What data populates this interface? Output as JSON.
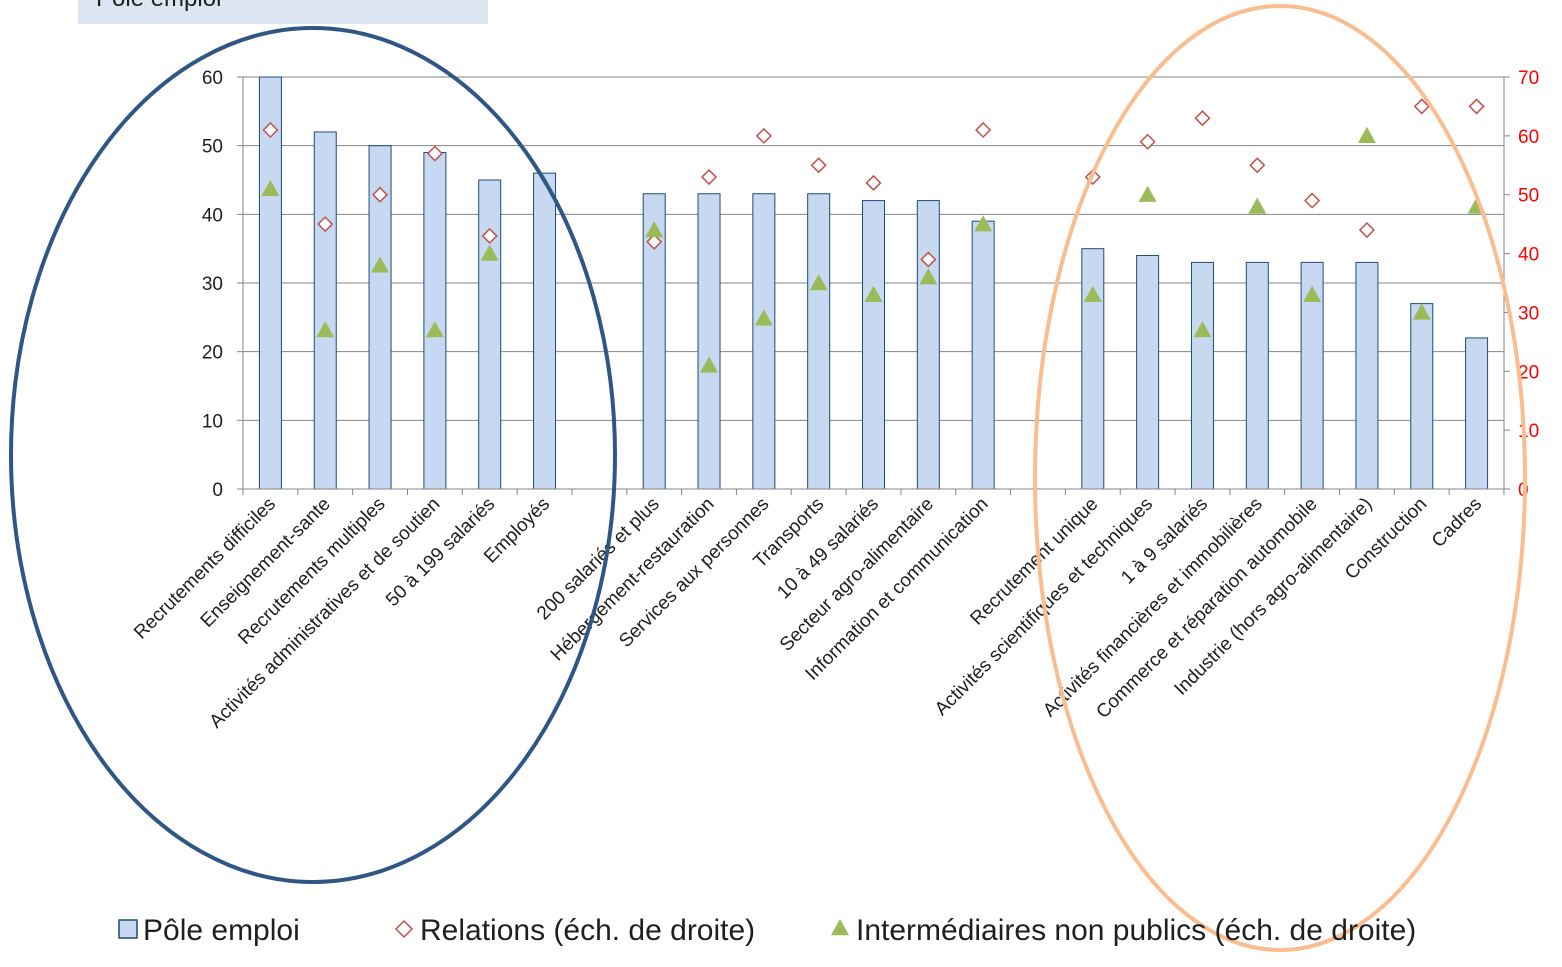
{
  "header": {
    "label": "Pôle emploi"
  },
  "chart_data": {
    "type": "bar",
    "categories": [
      "Recrutements difficiles",
      "Enseignement-sante",
      "Recrutements multiples",
      "Activités  administratives  et de soutien",
      "50 à 199 salariés",
      "Employés",
      "",
      "200 salariés et plus",
      "Hébergement-restauration",
      "Services aux personnes",
      "Transports",
      "10 à 49 salariés",
      "Secteur agro-alimentaire",
      "Information et communication",
      "",
      "Recrutement unique",
      "Activités scientifiques et  techniques",
      "1 à 9 salariés",
      "Activités financières et immobilières",
      "Commerce et réparation automobile",
      "Industrie (hors agro-alimentaire)",
      "Construction",
      "Cadres"
    ],
    "series": [
      {
        "name": "Pôle emploi",
        "axis": "left",
        "marker": "bar",
        "color": "#c6d9f1",
        "stroke": "#1f497d",
        "values": [
          60,
          52,
          50,
          49,
          45,
          46,
          null,
          43,
          43,
          43,
          43,
          42,
          42,
          39,
          null,
          35,
          34,
          33,
          33,
          33,
          33,
          27,
          22
        ]
      },
      {
        "name": "Relations (éch. de droite)",
        "axis": "right",
        "marker": "diamond",
        "color": "#c0504d",
        "values": [
          61,
          45,
          50,
          57,
          43,
          null,
          null,
          42,
          53,
          60,
          55,
          52,
          39,
          61,
          null,
          53,
          59,
          63,
          55,
          49,
          44,
          65,
          65
        ]
      },
      {
        "name": "Intermédiaires non publics (éch. de droite)",
        "axis": "right",
        "marker": "triangle",
        "color": "#9bbb59",
        "values": [
          51,
          27,
          38,
          27,
          40,
          null,
          null,
          44,
          21,
          29,
          35,
          33,
          36,
          45,
          null,
          33,
          50,
          27,
          48,
          33,
          60,
          30,
          48
        ]
      }
    ],
    "yleft": {
      "min": 0,
      "max": 60,
      "step": 10,
      "ticks": [
        "0",
        "10",
        "20",
        "30",
        "40",
        "50",
        "60"
      ]
    },
    "yright": {
      "min": 0,
      "max": 70,
      "step": 10,
      "ticks": [
        "0",
        "10",
        "20",
        "30",
        "40",
        "50",
        "60",
        "70"
      ]
    },
    "legend_position": "bottom",
    "grid": true,
    "colors": {
      "left_axis_text": "#1f1f1f",
      "right_axis_text": "#ff0000",
      "gridline": "#868686",
      "blue_ellipse": "#2f5685",
      "orange_ellipse": "#f9bd8f"
    }
  }
}
